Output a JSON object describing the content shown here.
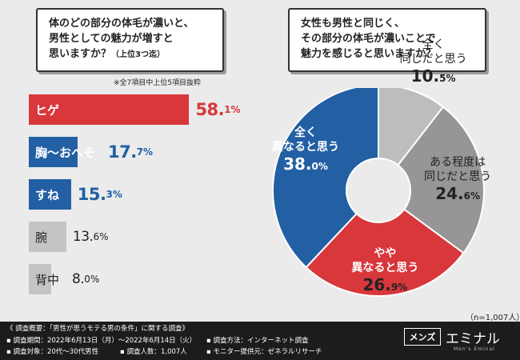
{
  "left_question": {
    "lines": [
      "体のどの部分の体毛が濃いと、",
      "男性としての魅力が増すと"
    ],
    "line3": "思いますか？",
    "line3_small": "（上位3つ迄）"
  },
  "left_note": "※全7項目中上位5項目抜粋",
  "right_question": {
    "lines": [
      "女性も男性と同じく、",
      "その部分の体毛が濃いことで",
      "魅力を感じると思いますか？"
    ]
  },
  "n_note": "（n=1,007人）",
  "colors": {
    "red": "#d8373c",
    "blue": "#2260a3",
    "gray_light": "#bdbdbd",
    "gray_dark": "#969696",
    "background": "#ebebeb",
    "footer": "#1c1c1c"
  },
  "chart_data": [
    {
      "type": "bar",
      "orientation": "horizontal",
      "categories": [
        "ヒゲ",
        "胸～おへそ",
        "すね",
        "腕",
        "背中"
      ],
      "values": [
        58.1,
        17.7,
        15.3,
        13.6,
        8.0
      ],
      "value_labels": [
        {
          "num": "58.",
          "dec": "1%"
        },
        {
          "num": "17.",
          "dec": "7%"
        },
        {
          "num": "15.",
          "dec": "3%"
        },
        {
          "num": "13.",
          "dec": "6%"
        },
        {
          "num": "8.",
          "dec": "0%"
        }
      ],
      "bar_colors": [
        "#d8373c",
        "#2260a3",
        "#2260a3",
        "#c4c4c4",
        "#c4c4c4"
      ],
      "unit": "%"
    },
    {
      "type": "pie",
      "style": "donut",
      "slices": [
        {
          "label_lines": [
            "全く",
            "同じだと思う"
          ],
          "value_num": "10.",
          "value_dec": "5%",
          "value": 10.5,
          "color": "#bdbdbd"
        },
        {
          "label_lines": [
            "ある程度は",
            "同じだと思う"
          ],
          "value_num": "24.",
          "value_dec": "6%",
          "value": 24.6,
          "color": "#969696"
        },
        {
          "label_lines": [
            "やや",
            "異なると思う"
          ],
          "value_num": "26.",
          "value_dec": "9%",
          "value": 26.9,
          "color": "#d8373c"
        },
        {
          "label_lines": [
            "全く",
            "異なると思う"
          ],
          "value_num": "38.",
          "value_dec": "0%",
          "value": 38.0,
          "color": "#2260a3"
        }
      ]
    }
  ],
  "footer": {
    "title": "《 調査概要：「男性が思うモテる男の条件」に関する調査》",
    "period": "▪ 調査期間：2022年6月13日（月）～2022年6月14日（火）",
    "target": "▪ 調査対象：20代～30代男性",
    "count": "▪ 調査人数：1,007人",
    "method": "▪ 調査方法：インターネット調査",
    "provider": "▪ モニター提供元：ゼネラルリサーチ"
  },
  "logo": {
    "box": "メンズ",
    "main": "エミナル",
    "sub": "Men's Eminal"
  }
}
